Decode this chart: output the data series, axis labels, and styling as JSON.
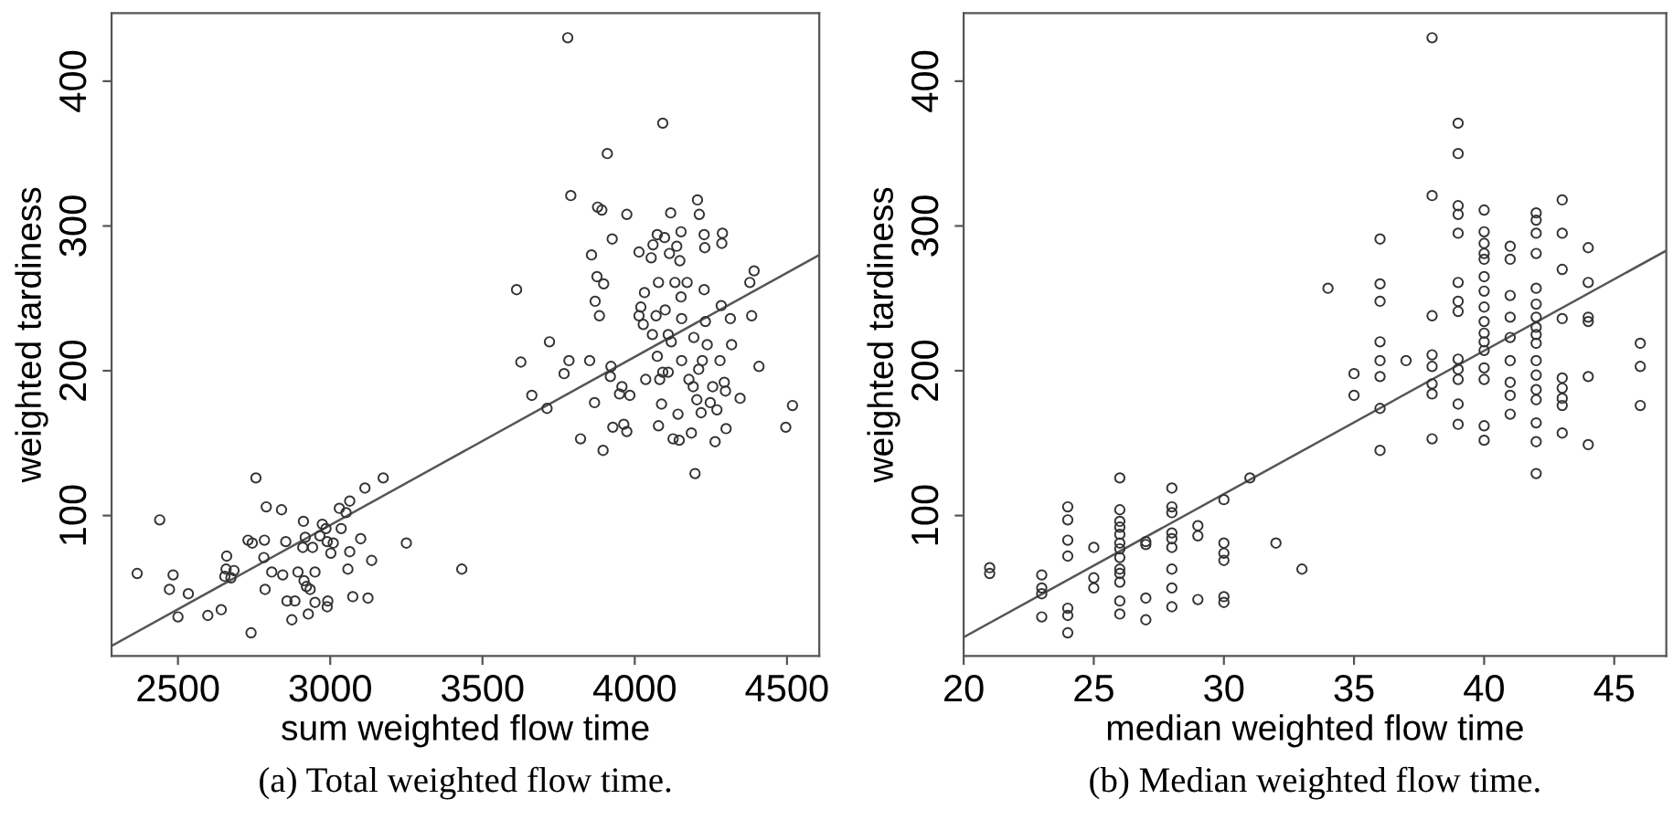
{
  "chart_data": [
    {
      "type": "scatter",
      "xlabel": "sum weighted flow time",
      "ylabel": "weighted tardiness",
      "xlim": [
        2282,
        4606
      ],
      "ylim": [
        3,
        447
      ],
      "xticks": [
        2500,
        3000,
        3500,
        4000,
        4500
      ],
      "yticks": [
        100,
        200,
        300,
        400
      ],
      "marker": "circle",
      "grid": false,
      "legend": false,
      "annotations": [
        "(a) Total weighted flow time."
      ],
      "series": [
        {
          "color": "#333333",
          "x": [
            2366,
            2440,
            2484,
            2472,
            2500,
            2534,
            2598,
            2642,
            2660,
            2658,
            2654,
            2684,
            2674,
            2730,
            2744,
            2756,
            2740,
            2782,
            2784,
            2790,
            2786,
            2808,
            2840,
            2844,
            2854,
            2858,
            2884,
            2874,
            2894,
            2912,
            2910,
            2918,
            2914,
            2922,
            2934,
            2928,
            2942,
            2950,
            2950,
            2966,
            2974,
            2986,
            2990,
            2992,
            2990,
            3002,
            3010,
            3030,
            3036,
            3052,
            3064,
            3058,
            3064,
            3074,
            3100,
            3114,
            3124,
            3136,
            3174,
            3250,
            3432,
            3612,
            3626,
            3662,
            3720,
            3712,
            3768,
            3780,
            3784,
            3790,
            3822,
            3852,
            3858,
            3868,
            3870,
            3876,
            3884,
            3878,
            3892,
            3898,
            3896,
            3910,
            3922,
            3920,
            3926,
            3928,
            3950,
            3958,
            3964,
            3974,
            3974,
            3984,
            4014,
            4014,
            4020,
            4028,
            4032,
            4036,
            4054,
            4060,
            4058,
            4074,
            4070,
            4074,
            4078,
            4078,
            4082,
            4088,
            4092,
            4092,
            4098,
            4100,
            4110,
            4118,
            4114,
            4110,
            4120,
            4126,
            4132,
            4138,
            4142,
            4146,
            4148,
            4152,
            4152,
            4154,
            4154,
            4172,
            4178,
            4186,
            4192,
            4194,
            4198,
            4206,
            4212,
            4204,
            4210,
            4218,
            4222,
            4228,
            4228,
            4230,
            4232,
            4238,
            4248,
            4256,
            4264,
            4270,
            4280,
            4284,
            4286,
            4288,
            4294,
            4300,
            4298,
            4314,
            4318,
            4346,
            4378,
            4384,
            4392,
            4408,
            4496,
            4518
          ],
          "values": [
            60,
            97,
            59,
            49,
            30,
            46,
            31,
            35,
            72,
            63,
            58,
            62,
            57,
            83,
            81,
            126,
            19,
            71,
            83,
            106,
            49,
            61,
            104,
            59,
            82,
            41,
            41,
            28,
            61,
            96,
            78,
            85,
            55,
            51,
            49,
            32,
            78,
            61,
            40,
            86,
            94,
            91,
            82,
            41,
            37,
            74,
            81,
            105,
            91,
            102,
            110,
            63,
            75,
            44,
            84,
            119,
            43,
            69,
            126,
            81,
            63,
            256,
            206,
            183,
            220,
            174,
            198,
            430,
            207,
            321,
            153,
            207,
            280,
            178,
            248,
            265,
            238,
            313,
            311,
            260,
            145,
            350,
            203,
            196,
            291,
            161,
            184,
            189,
            163,
            308,
            158,
            183,
            282,
            238,
            244,
            232,
            254,
            194,
            278,
            287,
            225,
            294,
            238,
            210,
            261,
            162,
            194,
            177,
            371,
            199,
            292,
            242,
            225,
            309,
            281,
            199,
            220,
            153,
            261,
            286,
            170,
            152,
            276,
            296,
            251,
            236,
            207,
            261,
            194,
            157,
            189,
            223,
            129,
            318,
            308,
            180,
            201,
            171,
            207,
            256,
            294,
            285,
            234,
            218,
            178,
            189,
            151,
            173,
            207,
            245,
            288,
            295,
            192,
            160,
            186,
            236,
            218,
            181,
            261,
            238,
            269,
            203,
            161,
            176
          ]
        },
        {
          "type": "line",
          "color": "#555555",
          "marker": "none",
          "line_style": "solid",
          "x": [
            2282,
            4606
          ],
          "values": [
            10,
            280
          ]
        }
      ]
    },
    {
      "type": "scatter",
      "xlabel": "median weighted flow time",
      "ylabel": "weighted tardiness",
      "xlim": [
        20,
        47
      ],
      "ylim": [
        3,
        447
      ],
      "xticks": [
        20,
        25,
        30,
        35,
        40,
        45
      ],
      "yticks": [
        100,
        200,
        300,
        400
      ],
      "marker": "circle",
      "grid": false,
      "legend": false,
      "annotations": [
        "(b) Median weighted flow time."
      ],
      "series": [
        {
          "color": "#333333",
          "x": [
            21,
            21,
            23,
            23,
            23,
            23,
            24,
            24,
            24,
            24,
            24,
            24,
            24,
            25,
            25,
            25,
            26,
            26,
            26,
            26,
            26,
            26,
            26,
            26,
            26,
            26,
            26,
            26,
            26,
            27,
            27,
            27,
            27,
            28,
            28,
            28,
            28,
            28,
            28,
            28,
            28,
            28,
            29,
            29,
            29,
            30,
            30,
            30,
            30,
            30,
            30,
            31,
            32,
            33,
            34,
            35,
            35,
            36,
            36,
            36,
            36,
            36,
            36,
            36,
            36,
            37,
            38,
            38,
            38,
            38,
            38,
            38,
            38,
            38,
            39,
            39,
            39,
            39,
            39,
            39,
            39,
            39,
            39,
            39,
            39,
            39,
            39,
            40,
            40,
            40,
            40,
            40,
            40,
            40,
            40,
            40,
            40,
            40,
            40,
            40,
            40,
            40,
            40,
            41,
            41,
            41,
            41,
            41,
            41,
            41,
            41,
            41,
            42,
            42,
            42,
            42,
            42,
            42,
            42,
            42,
            42,
            42,
            42,
            42,
            42,
            42,
            42,
            42,
            42,
            43,
            43,
            43,
            43,
            43,
            43,
            43,
            43,
            43,
            44,
            44,
            44,
            44,
            44,
            44,
            46,
            46,
            46
          ],
          "values": [
            64,
            60,
            59,
            50,
            46,
            30,
            106,
            97,
            83,
            72,
            36,
            31,
            19,
            78,
            57,
            50,
            126,
            104,
            96,
            92,
            87,
            81,
            77,
            71,
            63,
            60,
            54,
            41,
            32,
            82,
            80,
            43,
            28,
            119,
            106,
            102,
            88,
            84,
            78,
            63,
            50,
            37,
            93,
            86,
            42,
            111,
            81,
            74,
            69,
            44,
            40,
            126,
            81,
            63,
            257,
            198,
            183,
            291,
            260,
            248,
            220,
            207,
            196,
            174,
            145,
            207,
            430,
            321,
            238,
            211,
            203,
            191,
            184,
            153,
            371,
            350,
            314,
            308,
            295,
            261,
            248,
            241,
            208,
            201,
            194,
            177,
            163,
            311,
            296,
            288,
            281,
            277,
            265,
            255,
            244,
            234,
            226,
            220,
            214,
            202,
            194,
            162,
            152,
            286,
            277,
            252,
            237,
            223,
            207,
            192,
            183,
            170,
            309,
            304,
            295,
            281,
            257,
            246,
            237,
            230,
            225,
            219,
            207,
            197,
            187,
            180,
            164,
            151,
            129,
            318,
            295,
            270,
            236,
            195,
            188,
            181,
            176,
            157,
            285,
            261,
            237,
            234,
            196,
            149,
            219,
            203,
            176
          ]
        },
        {
          "type": "line",
          "color": "#555555",
          "marker": "none",
          "line_style": "solid",
          "x": [
            20,
            47
          ],
          "values": [
            16,
            283
          ]
        }
      ]
    }
  ]
}
